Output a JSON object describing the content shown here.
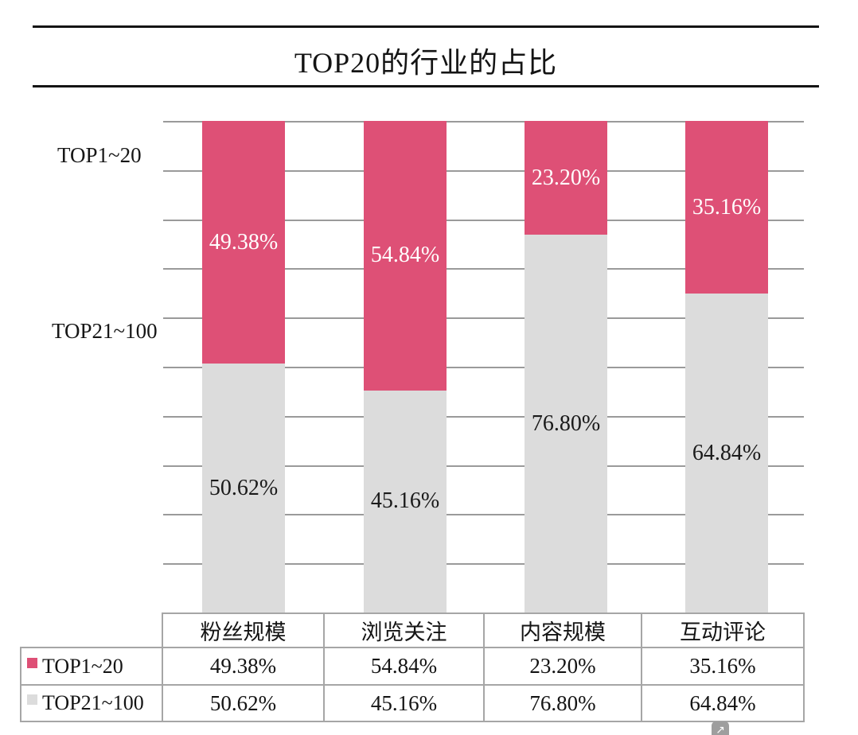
{
  "title": "TOP20的行业的占比",
  "chart_data": {
    "type": "bar",
    "stacked": true,
    "orientation": "vertical",
    "title": "TOP20的行业的占比",
    "categories": [
      "粉丝规模",
      "浏览关注",
      "内容规模",
      "互动评论"
    ],
    "series": [
      {
        "name": "TOP1~20",
        "color": "#de5076",
        "label_color": "#ffffff",
        "values": [
          49.38,
          54.84,
          23.2,
          35.16
        ]
      },
      {
        "name": "TOP21~100",
        "color": "#dcdcdc",
        "label_color": "#1a1a1a",
        "values": [
          50.62,
          45.16,
          76.8,
          64.84
        ]
      }
    ],
    "value_suffix": "%",
    "value_decimals": 2,
    "ylim": [
      0,
      100
    ],
    "gridline_step": 10,
    "grid": true,
    "legend_position": "left-of-plot",
    "left_labels": [
      "TOP1~20",
      "TOP21~100"
    ],
    "show_data_table": true
  },
  "table": {
    "headers": [
      "粉丝规模",
      "浏览关注",
      "内容规模",
      "互动评论"
    ],
    "rows": [
      {
        "legend": "TOP1~20",
        "marker_color": "#de5076",
        "values": [
          "49.38%",
          "54.84%",
          "23.20%",
          "35.16%"
        ]
      },
      {
        "legend": "TOP21~100",
        "marker_color": "#dcdcdc",
        "values": [
          "50.62%",
          "45.16%",
          "76.80%",
          "64.84%"
        ]
      }
    ]
  },
  "icons": {
    "external_link": "↗"
  },
  "colors": {
    "series_1": "#de5076",
    "series_2": "#dcdcdc",
    "gridline": "#9a9a9a",
    "table_border": "#a6a6a6",
    "title_rule": "#141414"
  }
}
